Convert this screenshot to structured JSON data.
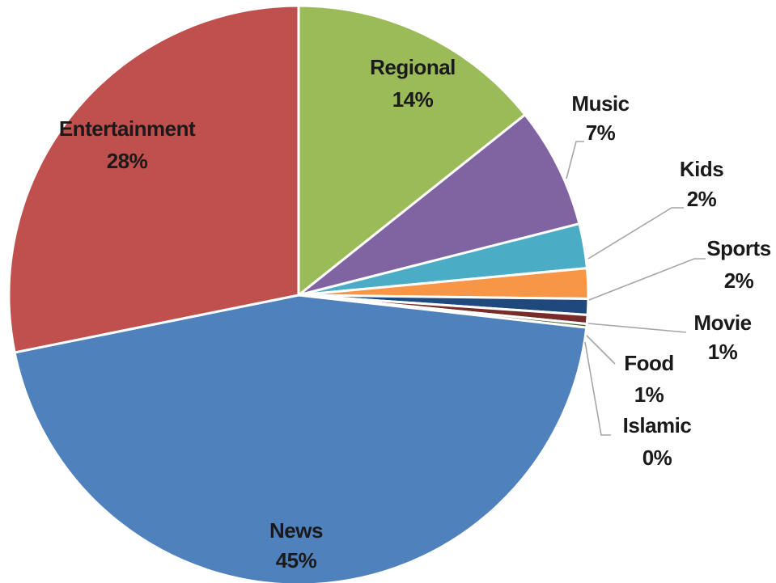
{
  "chart_data": {
    "type": "pie",
    "title": "",
    "slices": [
      {
        "label": "News",
        "value": 45.4,
        "percent_label": "45%",
        "color": "#4F81BD"
      },
      {
        "label": "Entertainment",
        "value": 28.4,
        "percent_label": "28%",
        "color": "#C0504D"
      },
      {
        "label": "Regional",
        "value": 14.4,
        "percent_label": "14%",
        "color": "#9BBB59"
      },
      {
        "label": "Music",
        "value": 6.8,
        "percent_label": "7%",
        "color": "#8064A2"
      },
      {
        "label": "Kids",
        "value": 2.5,
        "percent_label": "2%",
        "color": "#4BACC6"
      },
      {
        "label": "Sports",
        "value": 1.7,
        "percent_label": "2%",
        "color": "#F79646"
      },
      {
        "label": "Movie",
        "value": 0.9,
        "percent_label": "1%",
        "color": "#1F497D"
      },
      {
        "label": "Food",
        "value": 0.5,
        "percent_label": "1%",
        "color": "#772C2A"
      },
      {
        "label": "Islamic",
        "value": 0.2,
        "percent_label": "0%",
        "color": "#4A6329"
      }
    ],
    "start_angle": "12 o'clock",
    "direction": "clockwise",
    "legend": "none",
    "data_labels": "category name and percentage"
  }
}
